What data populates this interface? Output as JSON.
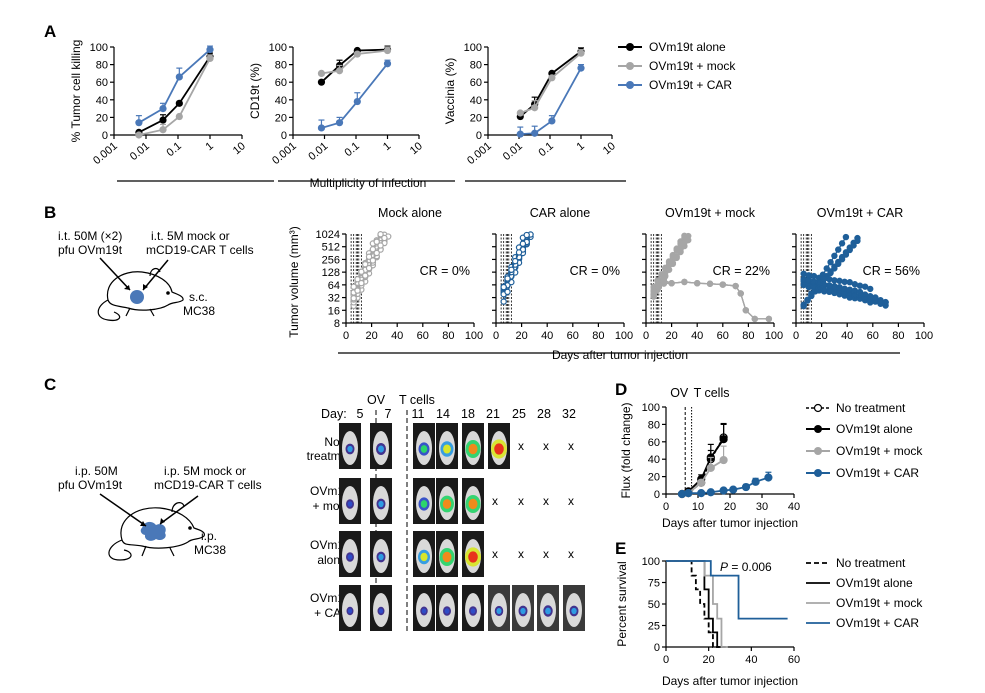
{
  "panel_labels": {
    "A": "A",
    "B": "B",
    "C": "C",
    "D": "D",
    "E": "E"
  },
  "colors": {
    "alone": "#000000",
    "mock": "#a6a6a6",
    "car": "#4a78b8",
    "car_dark": "#1f5f99",
    "red_x": "#e02020"
  },
  "panelA": {
    "xlabel": "Multiplicity of infection",
    "xticks": [
      "0.001",
      "0.01",
      "0.1",
      "1",
      "10"
    ],
    "yticks": [
      "0",
      "20",
      "40",
      "60",
      "80",
      "100"
    ],
    "legend": [
      "OVm19t alone",
      "OVm19t + mock",
      "OVm19t + CAR"
    ]
  },
  "panelB": {
    "left_label1": "i.t. 50M (×2)",
    "left_label2": "pfu OVm19t",
    "right_label1": "i.t. 5M mock or",
    "right_label2": "mCD19-CAR T cells",
    "sc_label1": "s.c.",
    "sc_label2": "MC38",
    "ylabel": "Tumor volume (mm³)",
    "yticks": [
      "1024",
      "512",
      "256",
      "128",
      "64",
      "32",
      "16",
      "8"
    ],
    "xticks": [
      "0",
      "20",
      "40",
      "60",
      "80",
      "100"
    ],
    "xlabel": "Days after tumor injection"
  },
  "panelC": {
    "ip1": "i.p. 50M",
    "ip2": "pfu OVm19t",
    "mock1": "i.p. 5M mock or",
    "mock2": "mCD19-CAR T cells",
    "mc1": "i.p.",
    "mc2": "MC38",
    "ov_label": "OV",
    "tcells_label": "T cells",
    "day_label": "Day:",
    "days": [
      "5",
      "7",
      "11",
      "14",
      "18",
      "21",
      "25",
      "28",
      "32"
    ],
    "rows": [
      {
        "l1": "No",
        "l2": "treatment"
      },
      {
        "l1": "OVm19t",
        "l2": "+ mock"
      },
      {
        "l1": "OVm19t",
        "l2": "alone"
      },
      {
        "l1": "OVm19t",
        "l2": "+ CAR"
      }
    ],
    "x_mark": "x"
  },
  "panelD": {
    "ov_label": "OV",
    "tcells_label": "T cells",
    "ylabel": "Flux (fold change)",
    "xlabel": "Days after tumor injection",
    "xticks": [
      "0",
      "10",
      "20",
      "30",
      "40"
    ],
    "yticks": [
      "0",
      "20",
      "40",
      "60",
      "80",
      "100"
    ],
    "legend": [
      "No treatment",
      "OVm19t alone",
      "OVm19t + mock",
      "OVm19t + CAR"
    ]
  },
  "panelE": {
    "pvalue_p": "P",
    "pvalue_rest": " = 0.006",
    "ylabel": "Percent survival",
    "xlabel": "Days after tumor injection",
    "xticks": [
      "0",
      "20",
      "40",
      "60"
    ],
    "yticks": [
      "0",
      "25",
      "50",
      "75",
      "100"
    ],
    "legend": [
      "No treatment",
      "OVm19t alone",
      "OVm19t + mock",
      "OVm19t + CAR"
    ]
  },
  "chart_data": [
    {
      "type": "line",
      "panel": "A1",
      "xscale": "log",
      "xlim": [
        0.001,
        10
      ],
      "ylim": [
        0,
        100
      ],
      "xlabel": "",
      "ylabel": "% Tumor cell killing",
      "series": [
        {
          "name": "OVm19t alone",
          "x": [
            0.006,
            0.034,
            0.11,
            1.0
          ],
          "y": [
            3,
            17,
            36,
            89
          ]
        },
        {
          "name": "OVm19t + mock",
          "x": [
            0.006,
            0.034,
            0.11,
            1.0
          ],
          "y": [
            0,
            6,
            21,
            87
          ]
        },
        {
          "name": "OVm19t + CAR",
          "x": [
            0.006,
            0.034,
            0.11,
            1.0
          ],
          "y": [
            14,
            30,
            66,
            97
          ]
        }
      ]
    },
    {
      "type": "line",
      "panel": "A2",
      "xscale": "log",
      "xlim": [
        0.001,
        10
      ],
      "ylim": [
        0,
        100
      ],
      "xlabel": "",
      "ylabel": "CD19t (%)",
      "series": [
        {
          "name": "OVm19t alone",
          "x": [
            0.008,
            0.03,
            0.11,
            1.0
          ],
          "y": [
            60,
            79,
            96,
            97
          ]
        },
        {
          "name": "OVm19t + mock",
          "x": [
            0.008,
            0.03,
            0.11,
            1.0
          ],
          "y": [
            70,
            73,
            92,
            96
          ]
        },
        {
          "name": "OVm19t + CAR",
          "x": [
            0.008,
            0.03,
            0.11,
            1.0
          ],
          "y": [
            8,
            14,
            38,
            81
          ]
        }
      ]
    },
    {
      "type": "line",
      "panel": "A3",
      "xscale": "log",
      "xlim": [
        0.001,
        10
      ],
      "ylim": [
        0,
        100
      ],
      "xlabel": "",
      "ylabel": "Vaccinia (%)",
      "series": [
        {
          "name": "OVm19t alone",
          "x": [
            0.011,
            0.032,
            0.115,
            1.0
          ],
          "y": [
            21,
            35,
            70,
            95
          ]
        },
        {
          "name": "OVm19t + mock",
          "x": [
            0.011,
            0.032,
            0.115,
            1.0
          ],
          "y": [
            25,
            31,
            65,
            93
          ]
        },
        {
          "name": "OVm19t + CAR",
          "x": [
            0.011,
            0.032,
            0.115,
            1.0
          ],
          "y": [
            1,
            2,
            16,
            76
          ]
        }
      ]
    },
    {
      "type": "line",
      "panel": "B1",
      "title": "Mock alone",
      "annotation": "CR = 0%",
      "yscale": "log2",
      "xlim": [
        0,
        100
      ],
      "ylim": [
        8,
        1024
      ],
      "ylabel": "Tumor volume (mm³)",
      "series": [
        {
          "name": "",
          "x": [
            6,
            10,
            14,
            18,
            22,
            26,
            30
          ],
          "y": [
            40,
            60,
            100,
            170,
            300,
            550,
            900
          ]
        }
      ]
    },
    {
      "type": "line",
      "panel": "B2",
      "title": "CAR alone",
      "annotation": "CR = 0%",
      "yscale": "log2",
      "xlim": [
        0,
        100
      ],
      "ylim": [
        8,
        1024
      ],
      "series": [
        {
          "name": "",
          "x": [
            6,
            10,
            14,
            18,
            22,
            26,
            30,
            34,
            38
          ],
          "y": [
            35,
            45,
            65,
            100,
            150,
            230,
            380,
            600,
            950
          ]
        }
      ]
    },
    {
      "type": "line",
      "panel": "B3",
      "title": "OVm19t + mock",
      "annotation": "CR = 22%",
      "yscale": "log2",
      "xlim": [
        0,
        100
      ],
      "ylim": [
        8,
        1024
      ],
      "series": [
        {
          "name": "",
          "x": [
            6,
            10,
            14,
            18,
            22,
            26,
            30,
            40,
            50,
            60,
            70,
            76,
            80,
            90,
            96
          ],
          "y": [
            30,
            40,
            55,
            60,
            70,
            90,
            80,
            65,
            65,
            60,
            58,
            30,
            14,
            10,
            10
          ]
        }
      ]
    },
    {
      "type": "line",
      "panel": "B4",
      "title": "OVm19t + CAR",
      "annotation": "CR = 56%",
      "yscale": "log2",
      "xlim": [
        0,
        100
      ],
      "ylim": [
        8,
        1024
      ],
      "series": [
        {
          "name": "",
          "x": [
            6,
            10,
            14,
            18,
            22,
            30,
            40,
            50,
            60,
            70,
            76
          ],
          "y": [
            70,
            60,
            50,
            40,
            30,
            25,
            18,
            14,
            11,
            9,
            8
          ]
        }
      ]
    },
    {
      "type": "line",
      "panel": "D",
      "xlim": [
        0,
        40
      ],
      "ylim": [
        0,
        100
      ],
      "xlabel": "Days after tumor injection",
      "ylabel": "Flux (fold change)",
      "series": [
        {
          "name": "No treatment",
          "x": [
            5,
            7,
            11,
            14,
            18
          ],
          "y": [
            0,
            1,
            13,
            40,
            65
          ]
        },
        {
          "name": "OVm19t alone",
          "x": [
            5,
            7,
            11,
            14,
            18
          ],
          "y": [
            0,
            3,
            17,
            42,
            63
          ]
        },
        {
          "name": "OVm19t + mock",
          "x": [
            5,
            7,
            11,
            14,
            18
          ],
          "y": [
            0,
            1,
            13,
            30,
            39
          ]
        },
        {
          "name": "OVm19t + CAR",
          "x": [
            5,
            7,
            11,
            14,
            18,
            21,
            25,
            28,
            32
          ],
          "y": [
            0,
            1,
            1,
            2,
            4,
            5,
            8,
            14,
            19
          ]
        }
      ]
    },
    {
      "type": "line",
      "panel": "E",
      "xlim": [
        0,
        60
      ],
      "ylim": [
        0,
        100
      ],
      "xlabel": "Days after tumor injection",
      "ylabel": "Percent survival",
      "series": [
        {
          "name": "No treatment",
          "x": [
            0,
            12,
            12,
            14,
            14,
            16,
            16,
            18,
            18,
            20,
            20,
            22,
            22,
            25
          ],
          "y": [
            100,
            100,
            83,
            83,
            67,
            67,
            50,
            50,
            33,
            33,
            17,
            17,
            0,
            0
          ]
        },
        {
          "name": "OVm19t alone",
          "x": [
            0,
            18,
            18,
            20,
            20,
            22,
            22,
            24,
            24,
            28
          ],
          "y": [
            100,
            100,
            67,
            67,
            33,
            33,
            17,
            17,
            0,
            0
          ]
        },
        {
          "name": "OVm19t + mock",
          "x": [
            0,
            18,
            18,
            22,
            22,
            24,
            24,
            26,
            26,
            29
          ],
          "y": [
            100,
            100,
            83,
            83,
            50,
            50,
            33,
            33,
            0,
            0
          ]
        },
        {
          "name": "OVm19t + CAR",
          "x": [
            0,
            21,
            21,
            26,
            26,
            34,
            34,
            57
          ],
          "y": [
            100,
            100,
            83,
            83,
            83,
            83,
            33,
            33
          ]
        }
      ]
    }
  ]
}
